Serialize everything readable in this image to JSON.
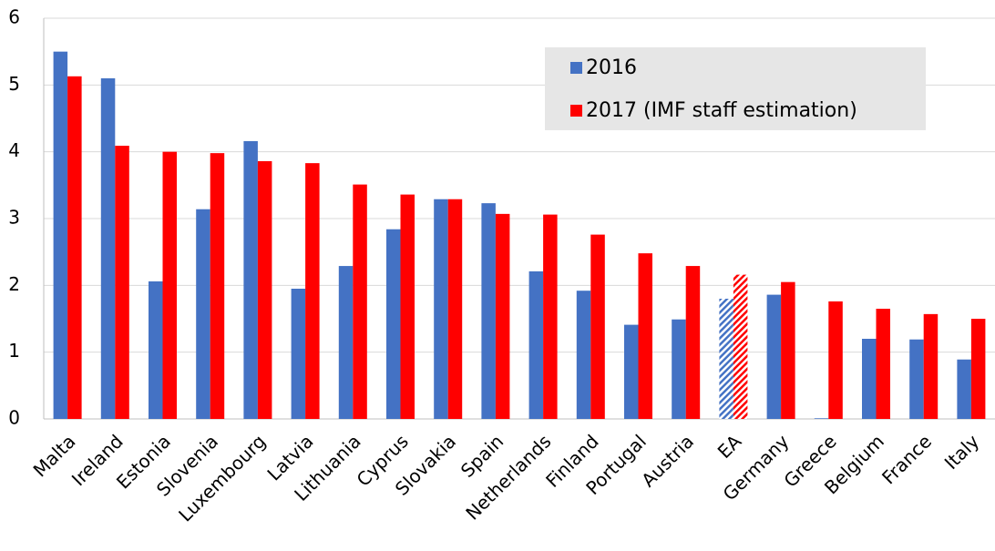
{
  "chart_data": {
    "type": "bar",
    "categories": [
      "Malta",
      "Ireland",
      "Estonia",
      "Slovenia",
      "Luxembourg",
      "Latvia",
      "Lithuania",
      "Cyprus",
      "Slovakia",
      "Spain",
      "Netherlands",
      "Finland",
      "Portugal",
      "Austria",
      "EA",
      "Germany",
      "Greece",
      "Belgium",
      "France",
      "Italy"
    ],
    "series": [
      {
        "name": "2016",
        "color": "#4472c4",
        "values": [
          5.5,
          5.1,
          2.06,
          3.14,
          4.16,
          1.95,
          2.29,
          2.84,
          3.29,
          3.23,
          2.21,
          1.92,
          1.41,
          1.49,
          1.8,
          1.86,
          0.01,
          1.2,
          1.19,
          0.89
        ]
      },
      {
        "name": "2017 (IMF staff estimation)",
        "color": "#ff0000",
        "values": [
          5.13,
          4.09,
          4.0,
          3.98,
          3.86,
          3.83,
          3.51,
          3.36,
          3.29,
          3.07,
          3.06,
          2.76,
          2.48,
          2.29,
          2.16,
          2.05,
          1.76,
          1.65,
          1.57,
          1.5
        ]
      }
    ],
    "hatched": [
      14
    ],
    "ylim": [
      0,
      6
    ],
    "yticks": [
      0,
      1,
      2,
      3,
      4,
      5,
      6
    ],
    "grid": true,
    "legend": "upper right"
  }
}
